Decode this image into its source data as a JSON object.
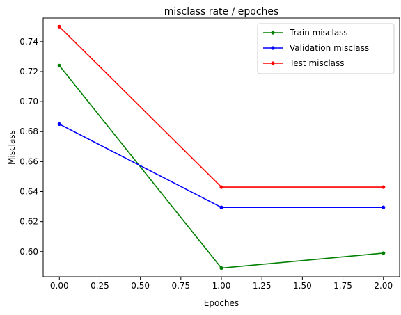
{
  "chart_data": {
    "type": "line",
    "title": "misclass rate / epoches",
    "xlabel": "Epoches",
    "ylabel": "Misclass",
    "x": [
      0,
      1,
      2
    ],
    "xlim": [
      -0.1,
      2.1
    ],
    "ylim": [
      0.5832,
      0.7557
    ],
    "xticks": [
      0.0,
      0.25,
      0.5,
      0.75,
      1.0,
      1.25,
      1.5,
      1.75,
      2.0
    ],
    "xtick_labels": [
      "0.00",
      "0.25",
      "0.50",
      "0.75",
      "1.00",
      "1.25",
      "1.50",
      "1.75",
      "2.00"
    ],
    "yticks": [
      0.6,
      0.62,
      0.64,
      0.66,
      0.68,
      0.7,
      0.72,
      0.74
    ],
    "ytick_labels": [
      "0.60",
      "0.62",
      "0.64",
      "0.66",
      "0.68",
      "0.70",
      "0.72",
      "0.74"
    ],
    "grid": false,
    "legend_position": "top-right",
    "series": [
      {
        "name": "Train misclass",
        "color": "#008000",
        "values": [
          0.724,
          0.589,
          0.599
        ]
      },
      {
        "name": "Validation misclass",
        "color": "#0000ff",
        "values": [
          0.685,
          0.6295,
          0.6295
        ]
      },
      {
        "name": "Test misclass",
        "color": "#ff0000",
        "values": [
          0.75,
          0.643,
          0.643
        ]
      }
    ]
  }
}
